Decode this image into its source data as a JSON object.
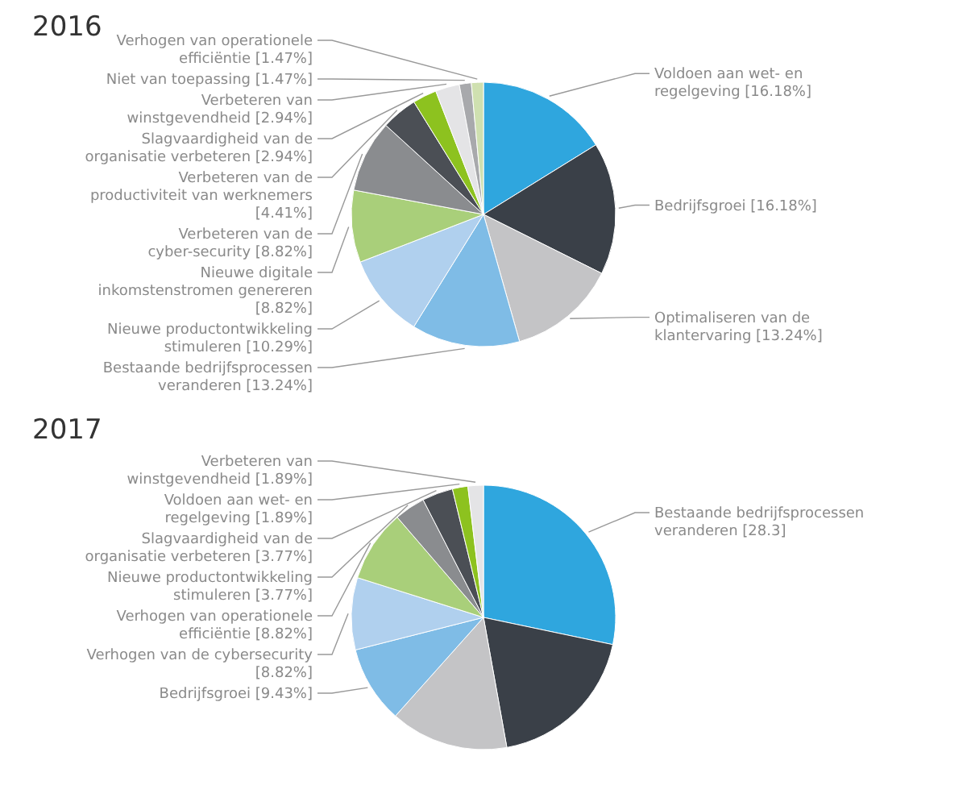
{
  "chart_data": [
    {
      "type": "pie",
      "title": "2016",
      "categories": [
        "Voldoen aan wet- en regelgeving",
        "Bedrijfsgroei",
        "Optimaliseren van de klantervaring",
        "Bestaande bedrijfsprocessen veranderen",
        "Nieuwe productontwikkeling stimuleren",
        "Nieuwe digitale inkomstenstromen genereren",
        "Verbeteren van de cyber-security",
        "Verbeteren van de productiviteit van werknemers",
        "Slagvaardigheid van de organisatie verbeteren",
        "Verbeteren van winstgevendheid",
        "Niet van toepassing",
        "Verhogen van operationele efficiëntie"
      ],
      "values": [
        16.18,
        16.18,
        13.24,
        13.24,
        10.29,
        8.82,
        8.82,
        4.41,
        2.94,
        2.94,
        1.47,
        1.47
      ],
      "value_labels": [
        "[16.18%]",
        "[16.18%]",
        "[13.24%]",
        "[13.24%]",
        "[10.29%]",
        "[8.82%]",
        "[8.82%]",
        "[4.41%]",
        "[2.94%]",
        "[2.94%]",
        "[1.47%]",
        "[1.47%]"
      ],
      "colors": [
        "#2fa6de",
        "#3a4048",
        "#c4c4c6",
        "#7fbce6",
        "#b0d0ee",
        "#a9cf7a",
        "#8a8c8f",
        "#4b4f55",
        "#8dc21f",
        "#e4e4e6",
        "#a8a9ac",
        "#cfe0b0"
      ]
    },
    {
      "type": "pie",
      "title": "2017",
      "categories": [
        "Bestaande bedrijfsprocessen veranderen",
        null,
        null,
        "Bedrijfsgroei",
        "Verhogen van de cybersecurity",
        "Verhogen van operationele efficiëntie",
        "Nieuwe productontwikkeling stimuleren",
        "Slagvaardigheid van de organisatie verbeteren",
        "Voldoen aan wet- en regelgeving",
        "Verbeteren van winstgevendheid"
      ],
      "values": [
        28.3,
        18.87,
        14.44,
        9.43,
        8.82,
        8.82,
        3.77,
        3.77,
        1.89,
        1.89
      ],
      "value_labels": [
        "[28.3]",
        null,
        null,
        "[9.43%]",
        "[8.82%]",
        "[8.82%]",
        "[3.77%]",
        "[3.77%]",
        "[1.89%]",
        "[1.89%]"
      ],
      "colors": [
        "#2fa6de",
        "#3a4048",
        "#c4c4c6",
        "#7fbce6",
        "#b0d0ee",
        "#a9cf7a",
        "#8a8c8f",
        "#4b4f55",
        "#8dc21f",
        "#e4e4e6"
      ]
    }
  ]
}
